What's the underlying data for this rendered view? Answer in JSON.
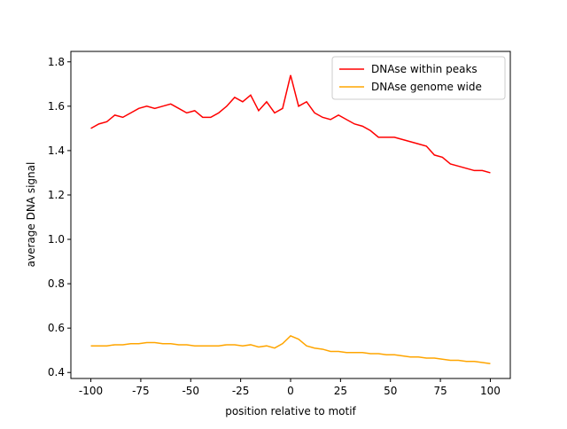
{
  "chart_data": {
    "type": "line",
    "xlabel": "position relative to motif",
    "ylabel": "average DNA signal",
    "x": [
      -100,
      -96,
      -92,
      -88,
      -84,
      -80,
      -76,
      -72,
      -68,
      -64,
      -60,
      -56,
      -52,
      -48,
      -44,
      -40,
      -36,
      -32,
      -28,
      -24,
      -20,
      -16,
      -12,
      -8,
      -4,
      0,
      4,
      8,
      12,
      16,
      20,
      24,
      28,
      32,
      36,
      40,
      44,
      48,
      52,
      56,
      60,
      64,
      68,
      72,
      76,
      80,
      84,
      88,
      92,
      96,
      100
    ],
    "series": [
      {
        "name": "DNAse within peaks",
        "color": "#ff0000",
        "values": [
          1.5,
          1.52,
          1.53,
          1.56,
          1.55,
          1.57,
          1.59,
          1.6,
          1.59,
          1.6,
          1.61,
          1.59,
          1.57,
          1.58,
          1.55,
          1.55,
          1.57,
          1.6,
          1.64,
          1.62,
          1.65,
          1.58,
          1.62,
          1.57,
          1.59,
          1.74,
          1.6,
          1.62,
          1.57,
          1.55,
          1.54,
          1.56,
          1.54,
          1.52,
          1.51,
          1.49,
          1.46,
          1.46,
          1.46,
          1.45,
          1.44,
          1.43,
          1.42,
          1.38,
          1.37,
          1.34,
          1.33,
          1.32,
          1.31,
          1.31,
          1.3
        ]
      },
      {
        "name": "DNAse genome wide",
        "color": "#ffa500",
        "values": [
          0.52,
          0.52,
          0.52,
          0.525,
          0.525,
          0.53,
          0.53,
          0.535,
          0.535,
          0.53,
          0.53,
          0.525,
          0.525,
          0.52,
          0.52,
          0.52,
          0.52,
          0.525,
          0.525,
          0.52,
          0.525,
          0.515,
          0.52,
          0.51,
          0.53,
          0.565,
          0.55,
          0.52,
          0.51,
          0.505,
          0.495,
          0.495,
          0.49,
          0.49,
          0.49,
          0.485,
          0.485,
          0.48,
          0.48,
          0.475,
          0.47,
          0.47,
          0.465,
          0.465,
          0.46,
          0.455,
          0.455,
          0.45,
          0.45,
          0.445,
          0.44
        ]
      }
    ],
    "xlim": [
      -110,
      110
    ],
    "ylim": [
      0.373,
      1.847
    ],
    "xticks": [
      -100,
      -75,
      -50,
      -25,
      0,
      25,
      50,
      75,
      100
    ],
    "yticks": [
      {
        "value": 0.4,
        "label": "0.4"
      },
      {
        "value": 0.6,
        "label": "0.6"
      },
      {
        "value": 0.8,
        "label": "0.8"
      },
      {
        "value": 1.0,
        "label": "1.0"
      },
      {
        "value": 1.2,
        "label": "1.2"
      },
      {
        "value": 1.4,
        "label": "1.4"
      },
      {
        "value": 1.6,
        "label": "1.6"
      },
      {
        "value": 1.8,
        "label": "1.8"
      }
    ],
    "legend": "upper right"
  }
}
